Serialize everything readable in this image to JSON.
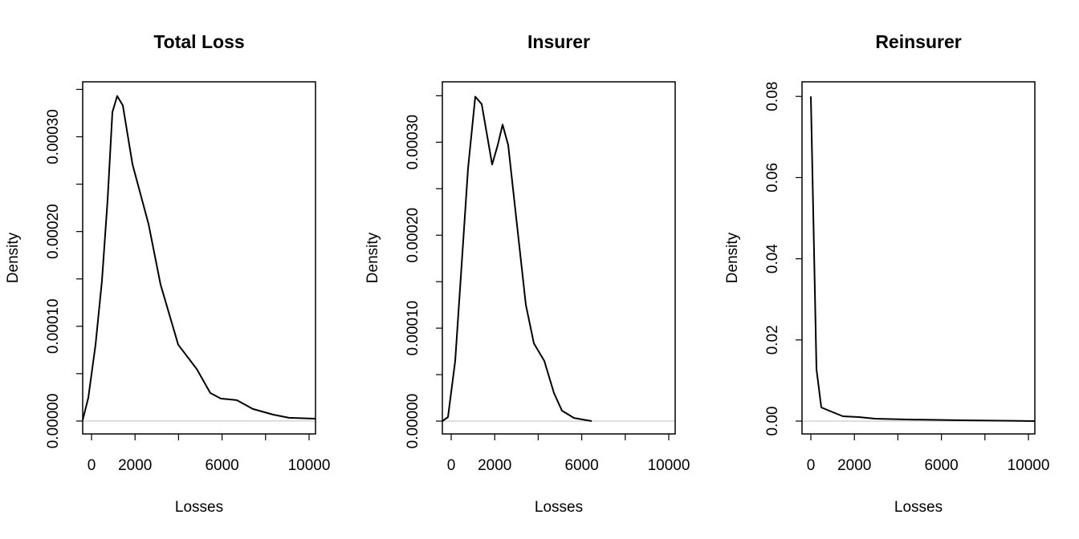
{
  "chart_data": [
    {
      "type": "line",
      "title": "Total Loss",
      "xlabel": "Losses",
      "ylabel": "Density",
      "color": "#000000",
      "zero_line_color": "#bebebe",
      "x": [
        -406,
        -148,
        185,
        480,
        738,
        959,
        1180,
        1439,
        1882,
        2620,
        3173,
        3985,
        4834,
        5461,
        5941,
        6679,
        7417,
        8339,
        9077,
        10295
      ],
      "values": [
        1e-06,
        2.46e-05,
        8.05e-05,
        0.000148,
        0.000233,
        0.000326,
        0.000343,
        0.000333,
        0.000271,
        0.000208,
        0.000144,
        8.05e-05,
        5.5e-05,
        2.96e-05,
        2.37e-05,
        2.2e-05,
        1.27e-05,
        6.8e-06,
        3.4e-06,
        2.5e-06
      ],
      "xlim": [
        -406,
        10295
      ],
      "ylim": [
        -1.36e-05,
        0.000358
      ],
      "xticks": [
        0,
        2000,
        6000,
        10000
      ],
      "xticks_unlabeled": [
        4000,
        8000
      ],
      "yticks": [
        {
          "value": 0,
          "label": "0.00000"
        },
        {
          "value": 0.0001,
          "label": "0.00010"
        },
        {
          "value": 0.0002,
          "label": "0.00020"
        },
        {
          "value": 0.0003,
          "label": "0.00030"
        }
      ],
      "yticks_unlabeled": [
        5e-05,
        0.00015,
        0.00025,
        0.00035
      ]
    },
    {
      "type": "line",
      "title": "Insurer",
      "xlabel": "Losses",
      "ylabel": "Density",
      "color": "#000000",
      "zero_line_color": "#bebebe",
      "x": [
        -406,
        -148,
        185,
        480,
        775,
        1107,
        1402,
        1882,
        2140,
        2362,
        2620,
        3063,
        3432,
        3801,
        4280,
        4723,
        5092,
        5646,
        6458
      ],
      "values": [
        0,
        4.3e-06,
        6.47e-05,
        0.000168,
        0.000272,
        0.000349,
        0.000341,
        0.000276,
        0.000297,
        0.000319,
        0.000297,
        0.000203,
        0.000125,
        8.36e-05,
        6.47e-05,
        3.02e-05,
        1.12e-05,
        3.4e-06,
        0
      ],
      "xlim": [
        -406,
        10295
      ],
      "ylim": [
        -1.38e-05,
        0.000365
      ],
      "xticks": [
        0,
        2000,
        6000,
        10000
      ],
      "xticks_unlabeled": [
        4000,
        8000
      ],
      "yticks": [
        {
          "value": 0,
          "label": "0.00000"
        },
        {
          "value": 0.0001,
          "label": "0.00010"
        },
        {
          "value": 0.0002,
          "label": "0.00020"
        },
        {
          "value": 0.0003,
          "label": "0.00030"
        }
      ],
      "yticks_unlabeled": [
        5e-05,
        0.00015,
        0.00025,
        0.00035
      ]
    },
    {
      "type": "line",
      "title": "Reinsurer",
      "xlabel": "Losses",
      "ylabel": "Density",
      "color": "#000000",
      "zero_line_color": "#bebebe",
      "x": [
        0,
        258,
        480,
        1107,
        1476,
        2214,
        2952,
        4428,
        7011,
        10295
      ],
      "values": [
        0.08,
        0.0128,
        0.00336,
        0.00198,
        0.00118,
        0.00099,
        0.00059,
        0.0004,
        0.0002,
        0
      ],
      "xlim": [
        -406,
        10295
      ],
      "ylim": [
        -0.00316,
        0.0836
      ],
      "xticks": [
        0,
        2000,
        6000,
        10000
      ],
      "xticks_unlabeled": [
        4000,
        8000
      ],
      "yticks": [
        {
          "value": 0,
          "label": "0.00"
        },
        0.02,
        0.04,
        0.06,
        0.08
      ],
      "yticks_unlabeled": []
    }
  ]
}
